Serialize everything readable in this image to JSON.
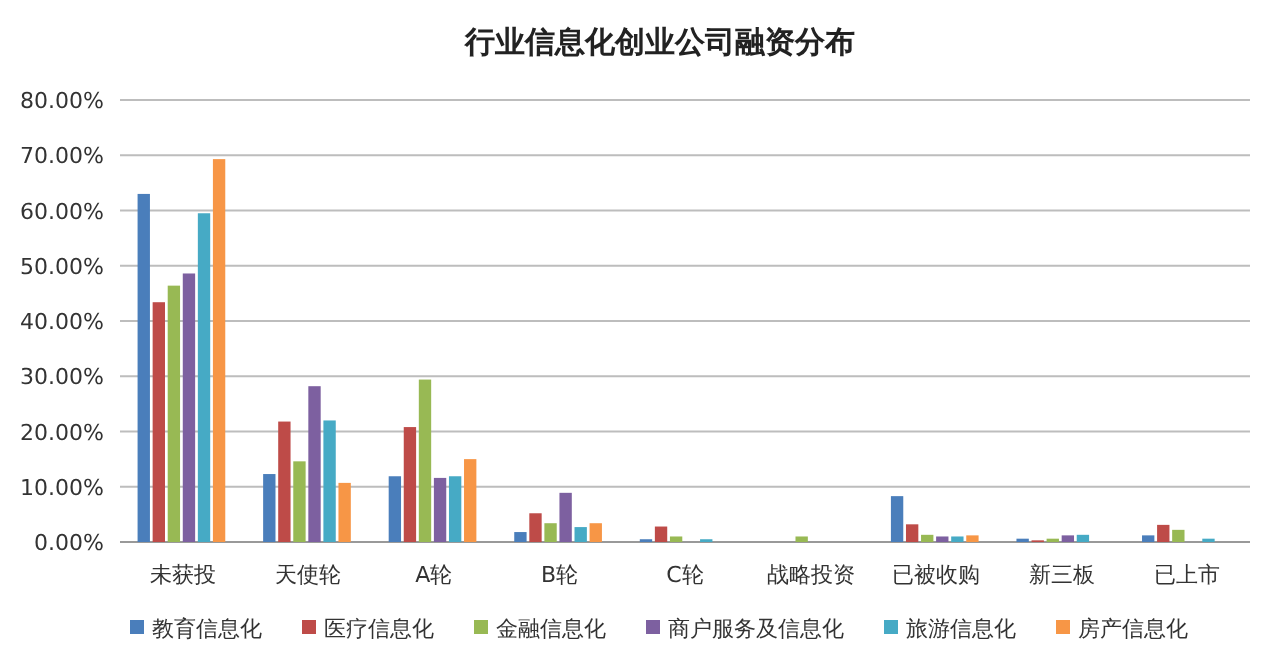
{
  "chart_data": {
    "type": "bar",
    "title": "行业信息化创业公司融资分布",
    "categories": [
      "未获投",
      "天使轮",
      "A轮",
      "B轮",
      "C轮",
      "战略投资",
      "已被收购",
      "新三板",
      "已上市"
    ],
    "series": [
      {
        "name": "教育信息化",
        "color": "#4a7ebb",
        "values": [
          63.0,
          12.3,
          11.9,
          1.8,
          0.5,
          0,
          8.3,
          0.6,
          1.2
        ]
      },
      {
        "name": "医疗信息化",
        "color": "#be4b48",
        "values": [
          43.4,
          21.8,
          20.8,
          5.2,
          2.8,
          0,
          3.2,
          0.3,
          3.1
        ]
      },
      {
        "name": "金融信息化",
        "color": "#98b954",
        "values": [
          46.4,
          14.6,
          29.4,
          3.4,
          1.0,
          1.0,
          1.3,
          0.6,
          2.2
        ]
      },
      {
        "name": "商户服务及信息化",
        "color": "#7d60a0",
        "values": [
          48.6,
          28.2,
          11.6,
          8.9,
          0,
          0,
          1.0,
          1.2,
          0
        ]
      },
      {
        "name": "旅游信息化",
        "color": "#46aac5",
        "values": [
          59.5,
          22.0,
          11.9,
          2.7,
          0.5,
          0,
          1.0,
          1.3,
          0.6
        ]
      },
      {
        "name": "房产信息化",
        "color": "#f79646",
        "values": [
          69.3,
          10.7,
          15.0,
          3.4,
          0,
          0,
          1.2,
          0,
          0
        ]
      }
    ],
    "ylim": [
      0,
      80
    ],
    "yticks": [
      {
        "value": 0,
        "label": "0.00%"
      },
      {
        "value": 10,
        "label": "10.00%"
      },
      {
        "value": 20,
        "label": "20.00%"
      },
      {
        "value": 30,
        "label": "30.00%"
      },
      {
        "value": 40,
        "label": "40.00%"
      },
      {
        "value": 50,
        "label": "50.00%"
      },
      {
        "value": 60,
        "label": "60.00%"
      },
      {
        "value": 70,
        "label": "70.00%"
      },
      {
        "value": 80,
        "label": "80.00%"
      }
    ],
    "grid": "y",
    "legend": "bottom"
  }
}
